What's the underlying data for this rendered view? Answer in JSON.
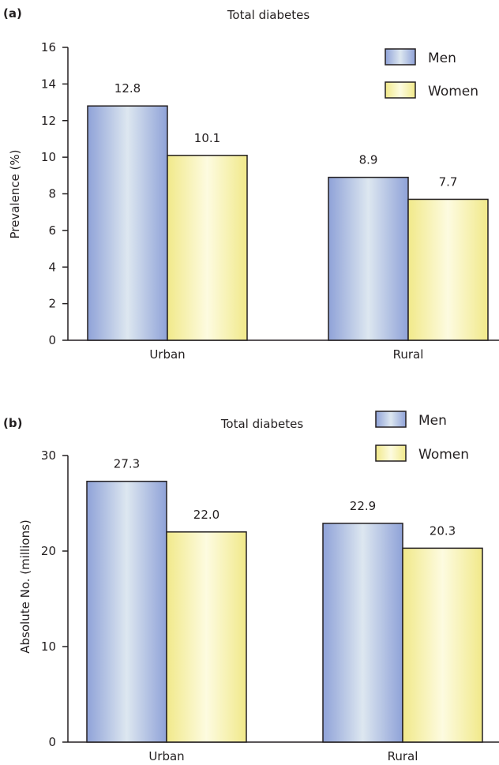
{
  "colors": {
    "men_dark": "#8fa2d8",
    "men_light": "#dde7f0",
    "women_dark": "#f1e98a",
    "women_light": "#fdfbe0",
    "stroke": "#231f20"
  },
  "chart_data": [
    {
      "type": "bar",
      "panel": "(a)",
      "title": "Total diabetes",
      "xlabel": "",
      "ylabel": "Prevalence (%)",
      "ylim": [
        0,
        16
      ],
      "yticks": [
        0,
        2,
        4,
        6,
        8,
        10,
        12,
        14,
        16
      ],
      "categories": [
        "Urban",
        "Rural"
      ],
      "series": [
        {
          "name": "Men",
          "values": [
            12.8,
            8.9
          ],
          "labels": [
            "12.8",
            "8.9"
          ]
        },
        {
          "name": "Women",
          "values": [
            10.1,
            7.7
          ],
          "labels": [
            "10.1",
            "7.7"
          ]
        }
      ],
      "legend": "top-right",
      "grid": false
    },
    {
      "type": "bar",
      "panel": "(b)",
      "title": "Total diabetes",
      "xlabel": "",
      "ylabel": "Absolute No. (millions)",
      "ylim": [
        0,
        30
      ],
      "yticks": [
        0,
        10,
        20,
        30
      ],
      "categories": [
        "Urban",
        "Rural"
      ],
      "series": [
        {
          "name": "Men",
          "values": [
            27.3,
            22.9
          ],
          "labels": [
            "27.3",
            "22.9"
          ]
        },
        {
          "name": "Women",
          "values": [
            22.0,
            20.3
          ],
          "labels": [
            "22.0",
            "20.3"
          ]
        }
      ],
      "legend": "top-right",
      "grid": false
    }
  ]
}
